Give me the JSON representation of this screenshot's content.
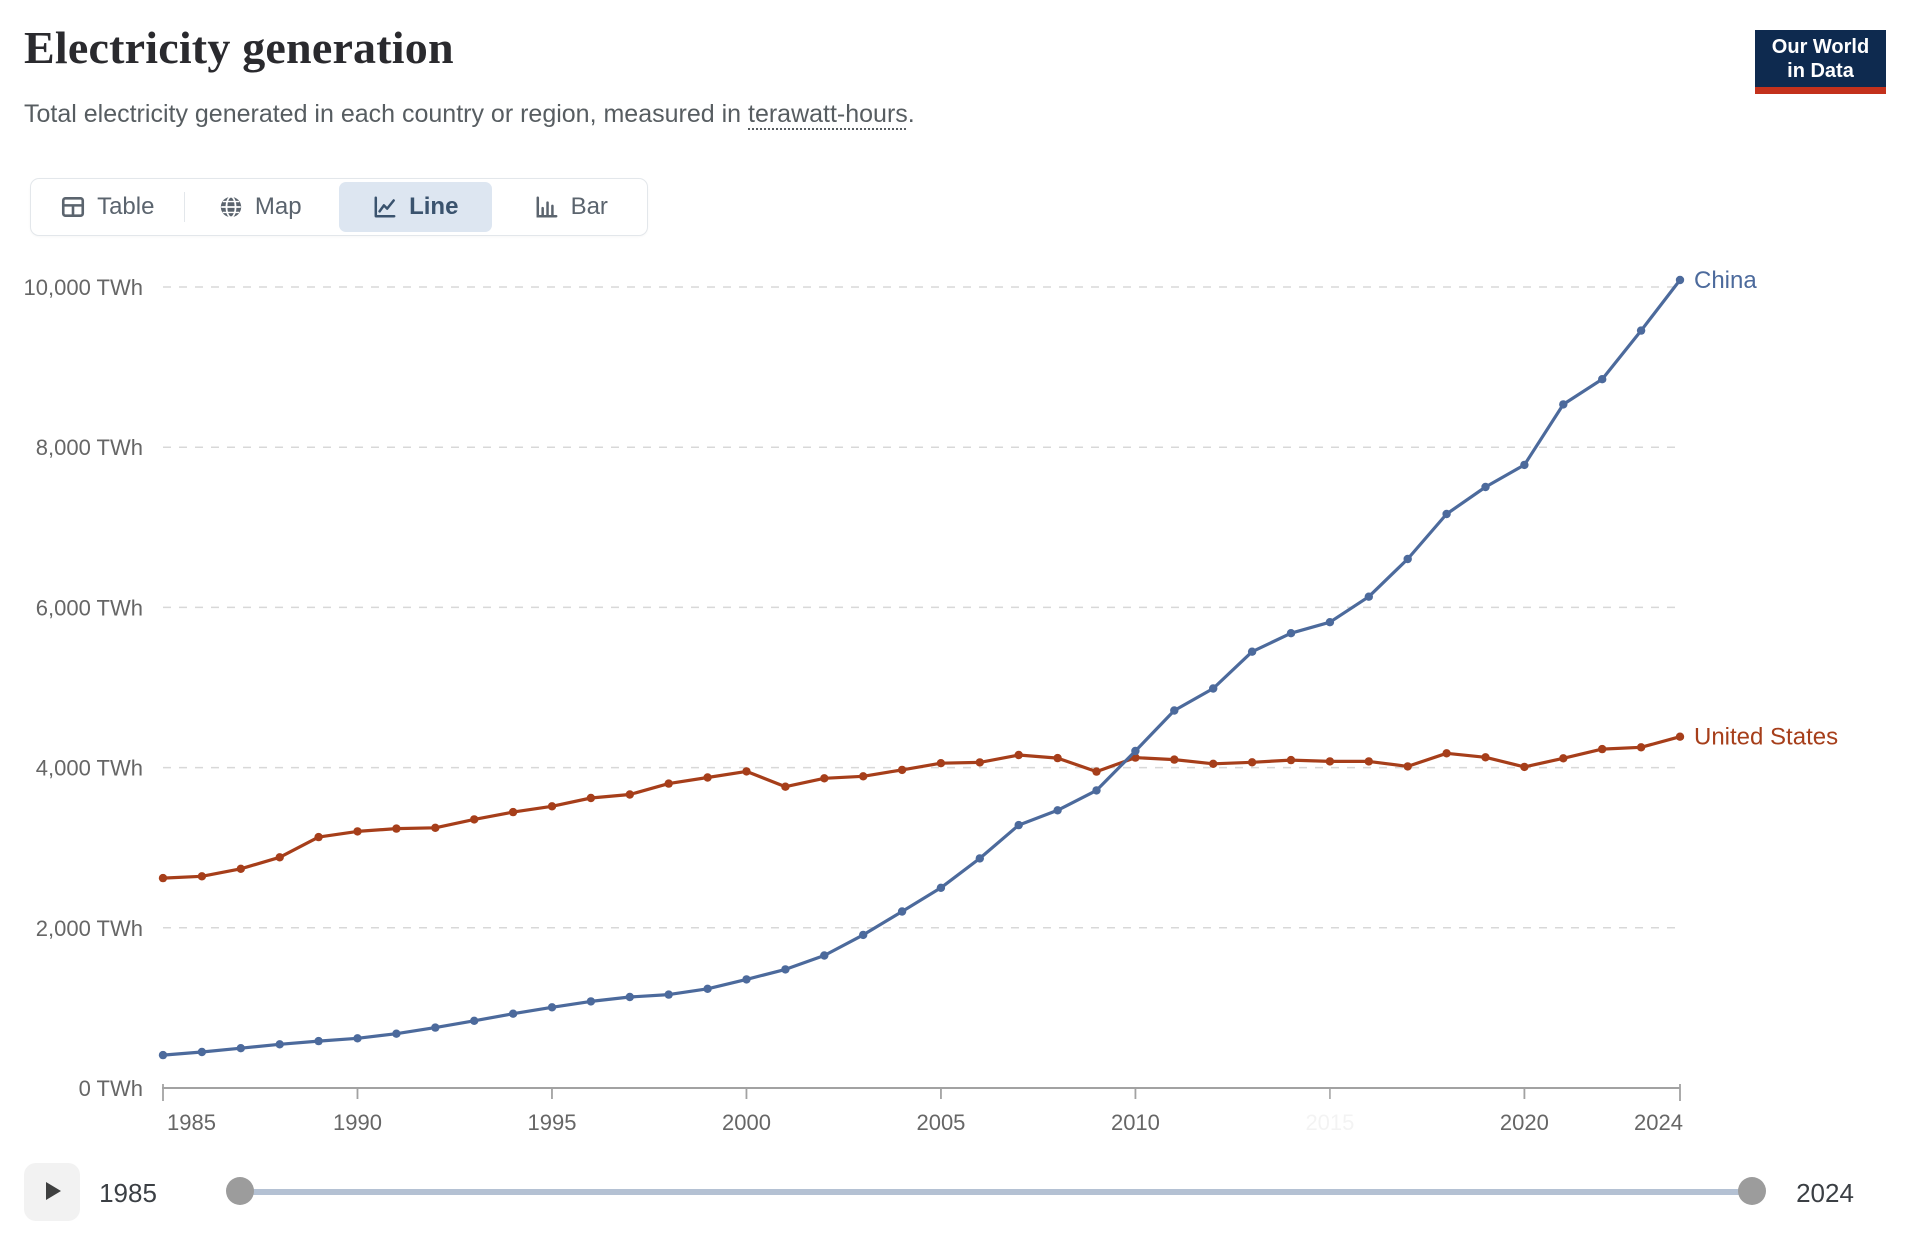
{
  "header": {
    "title": "Electricity generation",
    "subtitle_prefix": "Total electricity generated in each country or region, measured in ",
    "subtitle_link": "terawatt-hours",
    "subtitle_suffix": ".",
    "logo_line1": "Our World",
    "logo_line2": "in Data",
    "logo_colors": {
      "background": "#0e2a4f",
      "accent": "#c3311c"
    }
  },
  "tabs": [
    {
      "label": "Table",
      "icon": "table-icon",
      "active": false
    },
    {
      "label": "Map",
      "icon": "globe-icon",
      "active": false
    },
    {
      "label": "Line",
      "icon": "line-chart-icon",
      "active": true
    },
    {
      "label": "Bar",
      "icon": "bar-chart-icon",
      "active": false
    }
  ],
  "tab_colors": {
    "active_bg": "#dde6f1",
    "active_fg": "#3a536e",
    "inactive_fg": "#5b646e"
  },
  "chart_data": {
    "type": "line",
    "title": "Electricity generation",
    "unit": "TWh",
    "xlabel": "",
    "ylabel": "",
    "xlim": [
      1985,
      2024
    ],
    "ylim": [
      0,
      10000
    ],
    "grid": "horizontal-dashed",
    "legend": "end-of-line-labels",
    "x": [
      1985,
      1986,
      1987,
      1988,
      1989,
      1990,
      1991,
      1992,
      1993,
      1994,
      1995,
      1996,
      1997,
      1998,
      1999,
      2000,
      2001,
      2002,
      2003,
      2004,
      2005,
      2006,
      2007,
      2008,
      2009,
      2010,
      2011,
      2012,
      2013,
      2014,
      2015,
      2016,
      2017,
      2018,
      2019,
      2020,
      2021,
      2022,
      2023,
      2024
    ],
    "series": [
      {
        "name": "United States",
        "color": "#A63E1A",
        "values": [
          2621,
          2643,
          2737,
          2880,
          3132,
          3203,
          3238,
          3249,
          3353,
          3444,
          3517,
          3620,
          3664,
          3800,
          3876,
          3952,
          3761,
          3867,
          3892,
          3971,
          4055,
          4065,
          4157,
          4119,
          3950,
          4125,
          4100,
          4048,
          4066,
          4094,
          4078,
          4077,
          4015,
          4178,
          4128,
          4009,
          4116,
          4231,
          4254,
          4386
        ]
      },
      {
        "name": "China",
        "color": "#4C6A9C",
        "values": [
          411,
          450,
          497,
          545,
          585,
          621,
          678,
          754,
          839,
          928,
          1007,
          1081,
          1136,
          1166,
          1239,
          1356,
          1481,
          1654,
          1911,
          2203,
          2500,
          2866,
          3282,
          3467,
          3715,
          4207,
          4713,
          4988,
          5447,
          5678,
          5815,
          6133,
          6604,
          7166,
          7503,
          7779,
          8534,
          8849,
          9456,
          10087
        ]
      }
    ],
    "yticks": [
      {
        "value": 0,
        "label": "0 TWh"
      },
      {
        "value": 2000,
        "label": "2,000 TWh"
      },
      {
        "value": 4000,
        "label": "4,000 TWh"
      },
      {
        "value": 6000,
        "label": "6,000 TWh"
      },
      {
        "value": 8000,
        "label": "8,000 TWh"
      },
      {
        "value": 10000,
        "label": "10,000 TWh"
      }
    ],
    "xticks": [
      {
        "year": 1985,
        "label": "1985"
      },
      {
        "year": 1990,
        "label": "1990"
      },
      {
        "year": 1995,
        "label": "1995"
      },
      {
        "year": 2000,
        "label": "2000"
      },
      {
        "year": 2005,
        "label": "2005"
      },
      {
        "year": 2010,
        "label": "2010"
      },
      {
        "year": 2015,
        "label": "2015",
        "ghost": true
      },
      {
        "year": 2020,
        "label": "2020"
      },
      {
        "year": 2024,
        "label": "2024"
      }
    ]
  },
  "timeline": {
    "start_label": "1985",
    "end_label": "2024"
  }
}
